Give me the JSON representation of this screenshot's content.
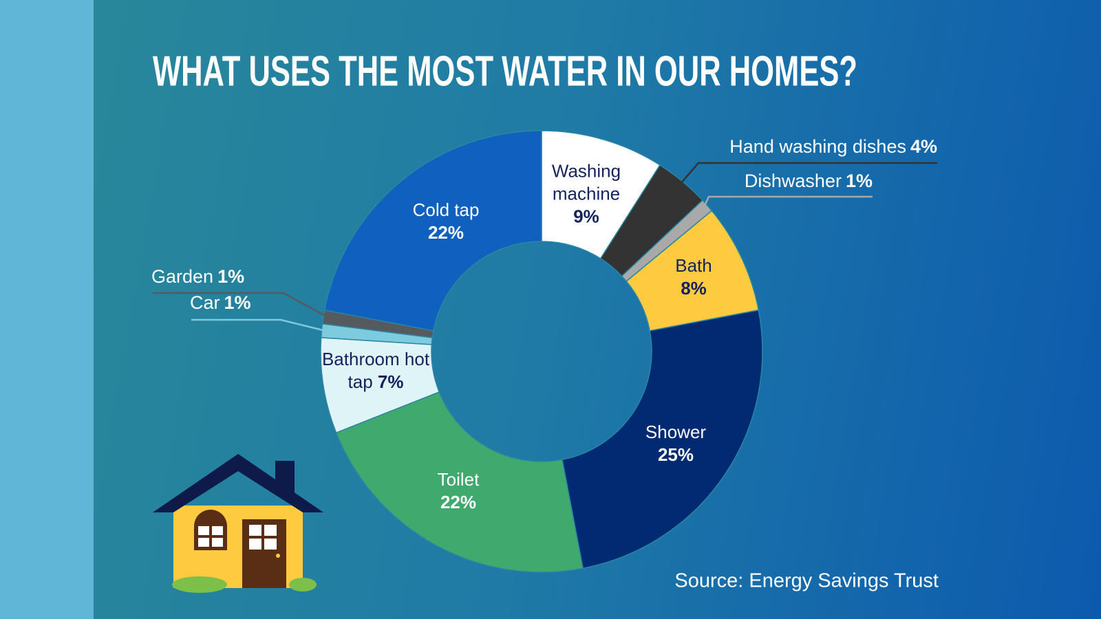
{
  "chart_data": {
    "type": "donut",
    "title": "WHAT USES THE MOST WATER IN OUR HOMES?",
    "source": "Source: Energy Savings Trust",
    "categories": [
      "Washing machine",
      "Hand washing dishes",
      "Dishwasher",
      "Bath",
      "Shower",
      "Toilet",
      "Bathroom hot tap",
      "Car",
      "Garden",
      "Cold tap"
    ],
    "values": [
      9,
      4,
      1,
      8,
      25,
      22,
      7,
      1,
      1,
      22
    ],
    "value_labels": [
      "9%",
      "4%",
      "1%",
      "8%",
      "25%",
      "22%",
      "7%",
      "1%",
      "1%",
      "22%"
    ],
    "colors": [
      "#ffffff",
      "#333333",
      "#a9a9a9",
      "#fdca40",
      "#012a72",
      "#40a96d",
      "#dff4f6",
      "#7ccbdf",
      "#555a5e",
      "#1060bf"
    ]
  }
}
